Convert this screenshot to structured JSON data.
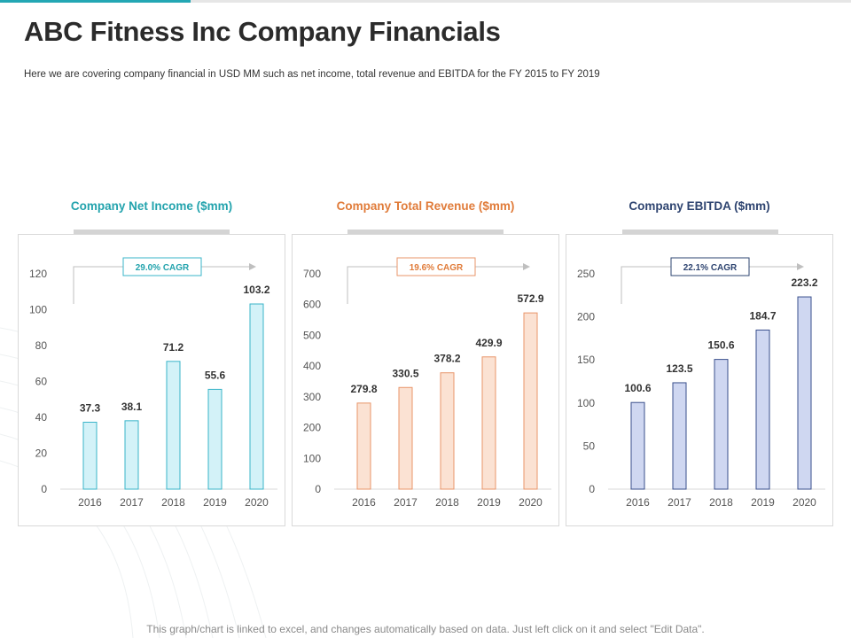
{
  "page": {
    "title": "ABC Fitness Inc Company Financials",
    "subtitle": "Here we are covering company financial in USD MM  such as net income, total revenue and EBITDA  for the FY  2015 to FY  2019",
    "footer": "This graph/chart is linked to excel, and changes automatically based on data. Just left click on it and select \"Edit Data\"."
  },
  "chart_data": [
    {
      "type": "bar",
      "title": "Company  Net Income ($mm)",
      "cagr_label": "29.0% CAGR",
      "categories": [
        "2016",
        "2017",
        "2018",
        "2019",
        "2020"
      ],
      "values": [
        37.3,
        38.1,
        71.2,
        55.6,
        103.2
      ],
      "value_labels": [
        "37.3",
        "38.1",
        "71.2",
        "55.6",
        "103.2"
      ],
      "ylim": [
        0,
        120
      ],
      "yticks": [
        0,
        20,
        40,
        60,
        80,
        100,
        120
      ],
      "xlabel": "",
      "ylabel": "",
      "colors": {
        "title": "#23a3ad",
        "bar_fill": "#d3f2f8",
        "bar_stroke": "#3ab4c8",
        "cagr_border": "#3ab4c8",
        "cagr_text": "#23a3ad"
      }
    },
    {
      "type": "bar",
      "title": "Company  Total Revenue ($mm)",
      "cagr_label": "19.6% CAGR",
      "categories": [
        "2016",
        "2017",
        "2018",
        "2019",
        "2020"
      ],
      "values": [
        279.8,
        330.5,
        378.2,
        429.9,
        572.9
      ],
      "value_labels": [
        "279.8",
        "330.5",
        "378.2",
        "429.9",
        "572.9"
      ],
      "ylim": [
        0,
        700
      ],
      "yticks": [
        0,
        100,
        200,
        300,
        400,
        500,
        600,
        700
      ],
      "xlabel": "",
      "ylabel": "",
      "colors": {
        "title": "#e07b39",
        "bar_fill": "#fbe2d3",
        "bar_stroke": "#e8956a",
        "cagr_border": "#e8956a",
        "cagr_text": "#e07b39"
      }
    },
    {
      "type": "bar",
      "title": "Company  EBITDA ($mm)",
      "cagr_label": "22.1% CAGR",
      "categories": [
        "2016",
        "2017",
        "2018",
        "2019",
        "2020"
      ],
      "values": [
        100.6,
        123.5,
        150.6,
        184.7,
        223.2
      ],
      "value_labels": [
        "100.6",
        "123.5",
        "150.6",
        "184.7",
        "223.2"
      ],
      "ylim": [
        0,
        250
      ],
      "yticks": [
        0,
        50,
        100,
        150,
        200,
        250
      ],
      "xlabel": "",
      "ylabel": "",
      "colors": {
        "title": "#2e4470",
        "bar_fill": "#cfd7f1",
        "bar_stroke": "#3a4f8c",
        "cagr_border": "#2e4470",
        "cagr_text": "#2e4470"
      }
    }
  ]
}
